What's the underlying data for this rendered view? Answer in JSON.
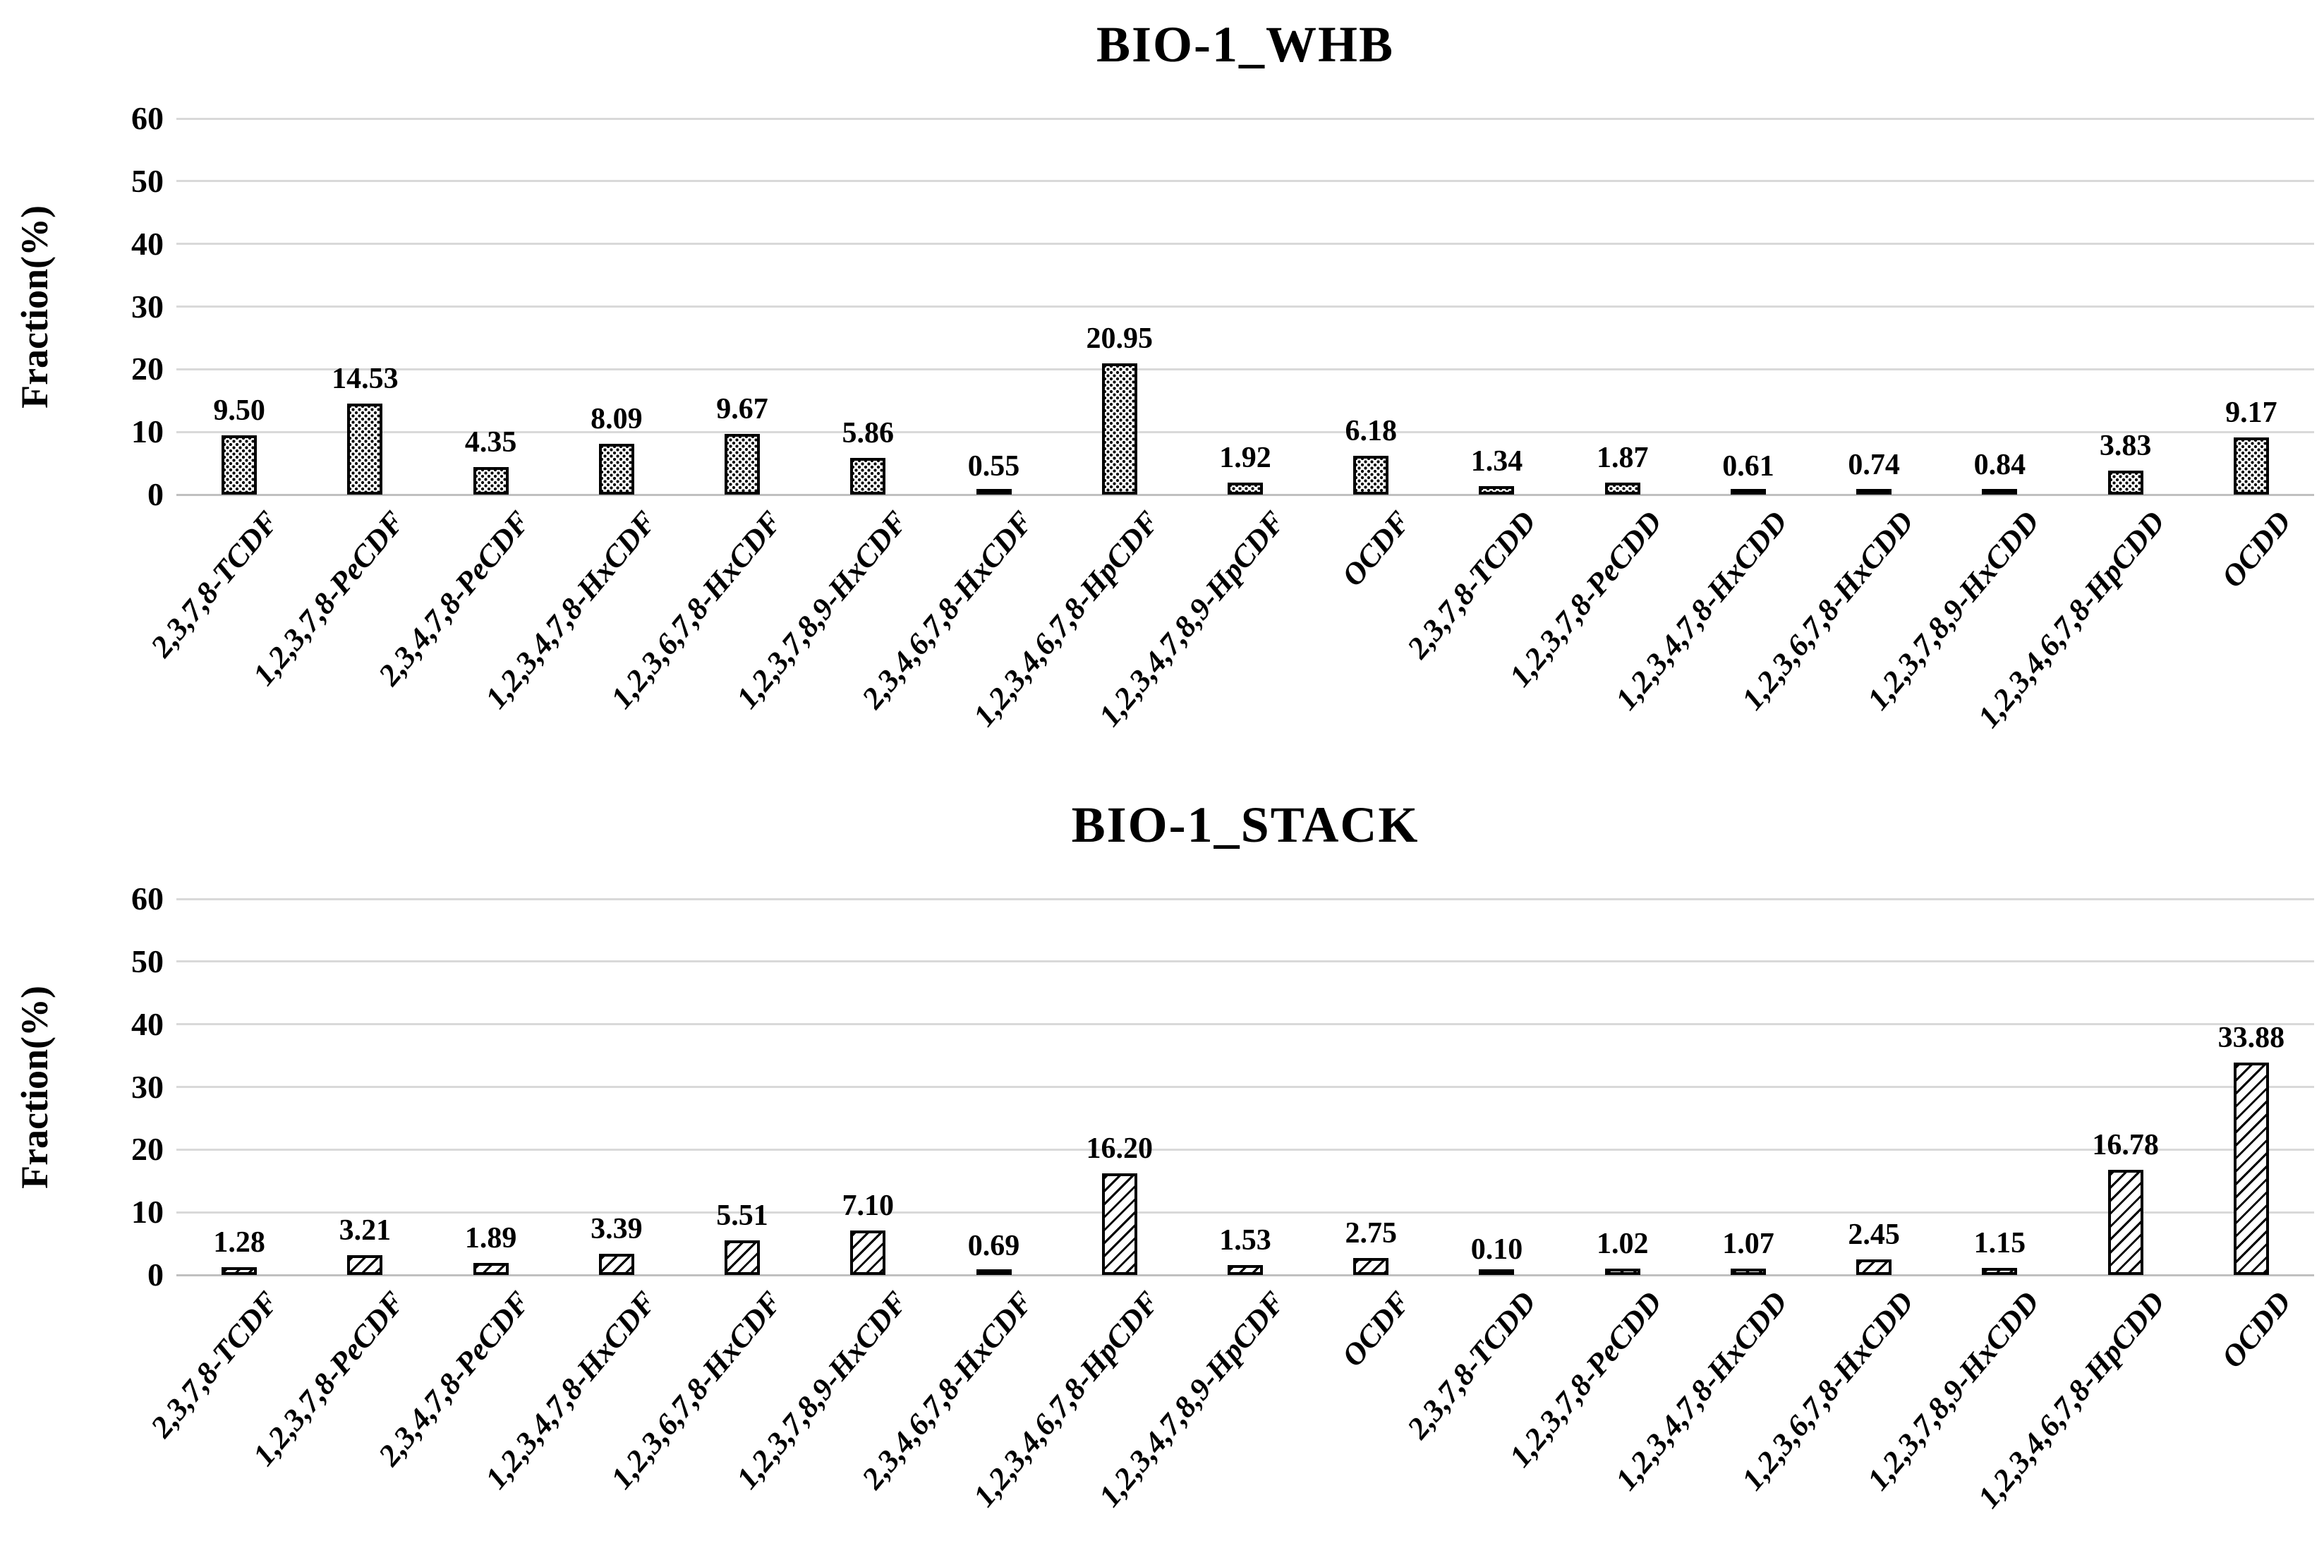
{
  "figure": {
    "background_color": "#ffffff",
    "text_color": "#000000",
    "gridline_color": "#d9d9d9"
  },
  "chart_data": [
    {
      "type": "bar",
      "title": "BIO-1_WHB",
      "xlabel": "",
      "ylabel": "Fraction(%)",
      "ylim": [
        0,
        60
      ],
      "yticks": [
        0,
        10,
        20,
        30,
        40,
        50,
        60
      ],
      "grid": true,
      "legend": "none",
      "bar_pattern": "dots",
      "categories": [
        "2,3,7,8-TCDF",
        "1,2,3,7,8-PeCDF",
        "2,3,4,7,8-PeCDF",
        "1,2,3,4,7,8-HxCDF",
        "1,2,3,6,7,8-HxCDF",
        "1,2,3,7,8,9-HxCDF",
        "2,3,4,6,7,8-HxCDF",
        "1,2,3,4,6,7,8-HpCDF",
        "1,2,3,4,7,8,9-HpCDF",
        "OCDF",
        "2,3,7,8-TCDD",
        "1,2,3,7,8-PeCDD",
        "1,2,3,4,7,8-HxCDD",
        "1,2,3,6,7,8-HxCDD",
        "1,2,3,7,8,9-HxCDD",
        "1,2,3,4,6,7,8-HpCDD",
        "OCDD"
      ],
      "values": [
        9.5,
        14.53,
        4.35,
        8.09,
        9.67,
        5.86,
        0.55,
        20.95,
        1.92,
        6.18,
        1.34,
        1.87,
        0.61,
        0.74,
        0.84,
        3.83,
        9.17
      ],
      "value_labels": [
        "9.50",
        "14.53",
        "4.35",
        "8.09",
        "9.67",
        "5.86",
        "0.55",
        "20.95",
        "1.92",
        "6.18",
        "1.34",
        "1.87",
        "0.61",
        "0.74",
        "0.84",
        "3.83",
        "9.17"
      ]
    },
    {
      "type": "bar",
      "title": "BIO-1_STACK",
      "xlabel": "",
      "ylabel": "Fraction(%)",
      "ylim": [
        0,
        60
      ],
      "yticks": [
        0,
        10,
        20,
        30,
        40,
        50,
        60
      ],
      "grid": true,
      "legend": "none",
      "bar_pattern": "hatch",
      "categories": [
        "2,3,7,8-TCDF",
        "1,2,3,7,8-PeCDF",
        "2,3,4,7,8-PeCDF",
        "1,2,3,4,7,8-HxCDF",
        "1,2,3,6,7,8-HxCDF",
        "1,2,3,7,8,9-HxCDF",
        "2,3,4,6,7,8-HxCDF",
        "1,2,3,4,6,7,8-HpCDF",
        "1,2,3,4,7,8,9-HpCDF",
        "OCDF",
        "2,3,7,8-TCDD",
        "1,2,3,7,8-PeCDD",
        "1,2,3,4,7,8-HxCDD",
        "1,2,3,6,7,8-HxCDD",
        "1,2,3,7,8,9-HxCDD",
        "1,2,3,4,6,7,8-HpCDD",
        "OCDD"
      ],
      "values": [
        1.28,
        3.21,
        1.89,
        3.39,
        5.51,
        7.1,
        0.69,
        16.2,
        1.53,
        2.75,
        0.1,
        1.02,
        1.07,
        2.45,
        1.15,
        16.78,
        33.88
      ],
      "value_labels": [
        "1.28",
        "3.21",
        "1.89",
        "3.39",
        "5.51",
        "7.10",
        "0.69",
        "16.20",
        "1.53",
        "2.75",
        "0.10",
        "1.02",
        "1.07",
        "2.45",
        "1.15",
        "16.78",
        "33.88"
      ]
    }
  ]
}
